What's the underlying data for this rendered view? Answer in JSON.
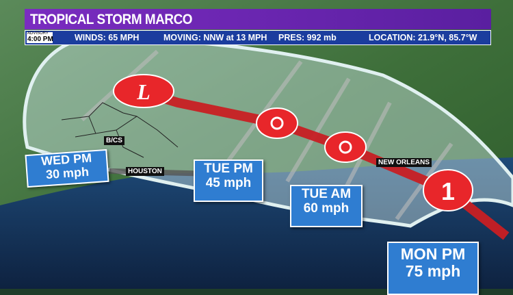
{
  "header": {
    "title": "TROPICAL STORM MARCO",
    "advisory_label": "ADVISORY",
    "advisory_time": "4:00 PM",
    "winds": "WINDS: 65 MPH",
    "moving": "MOVING:  NNW at 13 MPH",
    "pressure": "PRES: 992 mb",
    "location": "LOCATION: 21.9°N, 85.7°W"
  },
  "cities": [
    {
      "name": "B/CS"
    },
    {
      "name": "HOUSTON"
    },
    {
      "name": "NEW ORLEANS"
    }
  ],
  "forecast_points": [
    {
      "time": "WED PM",
      "wind": "30 mph",
      "symbol": "L"
    },
    {
      "time": "TUE PM",
      "wind": "45 mph",
      "symbol": "tropical-storm"
    },
    {
      "time": "TUE AM",
      "wind": "60 mph",
      "symbol": "tropical-storm"
    },
    {
      "time": "MON PM",
      "wind": "75 mph",
      "symbol": "1"
    }
  ],
  "colors": {
    "title": "#7a2cc0",
    "info_bar": "#1b3d9e",
    "label_box": "#2f7dd1",
    "track": "#e8262a",
    "cone": "#cfe6e6"
  }
}
